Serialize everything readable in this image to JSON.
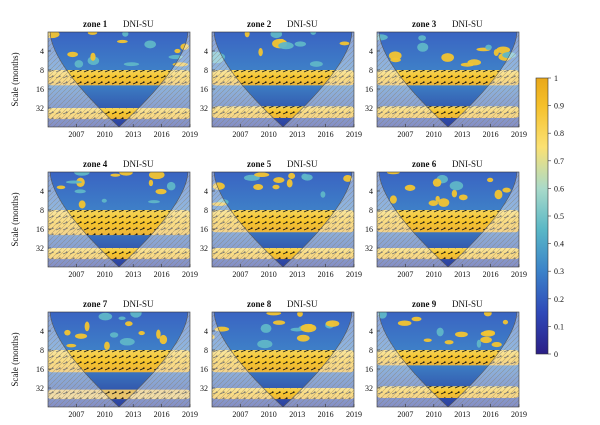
{
  "figure": {
    "ylabel": "Scale (months)",
    "panels": [
      {
        "zone": "zone 1",
        "pair": "DNI-SU"
      },
      {
        "zone": "zone 2",
        "pair": "DNI-SU"
      },
      {
        "zone": "zone 3",
        "pair": "DNI-SU"
      },
      {
        "zone": "zone 4",
        "pair": "DNI-SU"
      },
      {
        "zone": "zone 5",
        "pair": "DNI-SU"
      },
      {
        "zone": "zone 6",
        "pair": "DNI-SU"
      },
      {
        "zone": "zone 7",
        "pair": "DNI-SU"
      },
      {
        "zone": "zone 8",
        "pair": "DNI-SU"
      },
      {
        "zone": "zone 9",
        "pair": "DNI-SU"
      }
    ]
  },
  "chart_data": {
    "type": "heatmap",
    "subtype": "wavelet coherence",
    "x_ticks": [
      "2007",
      "2010",
      "2013",
      "2016",
      "2019"
    ],
    "x_tick_values": [
      2007,
      2010,
      2013,
      2016,
      2019
    ],
    "xlim": [
      2004,
      2019
    ],
    "y_ticks": [
      "4",
      "8",
      "16",
      "32"
    ],
    "y_tick_values": [
      4,
      8,
      16,
      32
    ],
    "ylim": [
      2,
      64
    ],
    "y_scale": "log2",
    "colorbar": {
      "ticks": [
        "0",
        "0.1",
        "0.2",
        "0.3",
        "0.4",
        "0.5",
        "0.6",
        "0.7",
        "0.8",
        "0.9",
        "1"
      ],
      "values": [
        0,
        0.1,
        0.2,
        0.3,
        0.4,
        0.5,
        0.6,
        0.7,
        0.8,
        0.9,
        1
      ],
      "range": [
        0,
        1
      ],
      "colors": [
        "#2b1f86",
        "#2f49b8",
        "#3b82c9",
        "#59b7c6",
        "#a9dac9",
        "#fbe173",
        "#f5c02b",
        "#e9a81a"
      ]
    },
    "panels": [
      {
        "name": "zone 1",
        "bands": [
          {
            "scale": [
              8,
              14
            ],
            "coherence": 0.9
          },
          {
            "scale": [
              32,
              48
            ],
            "coherence": 0.85
          }
        ]
      },
      {
        "name": "zone 2",
        "bands": [
          {
            "scale": [
              8,
              14
            ],
            "coherence": 0.9
          },
          {
            "scale": [
              30,
              46
            ],
            "coherence": 0.85
          }
        ]
      },
      {
        "name": "zone 3",
        "bands": [
          {
            "scale": [
              8,
              14
            ],
            "coherence": 0.9
          },
          {
            "scale": [
              30,
              46
            ],
            "coherence": 0.85
          }
        ]
      },
      {
        "name": "zone 4",
        "bands": [
          {
            "scale": [
              8,
              20
            ],
            "coherence": 0.9
          },
          {
            "scale": [
              32,
              48
            ],
            "coherence": 0.85
          }
        ]
      },
      {
        "name": "zone 5",
        "bands": [
          {
            "scale": [
              8,
              18
            ],
            "coherence": 0.9
          },
          {
            "scale": [
              32,
              48
            ],
            "coherence": 0.85
          }
        ]
      },
      {
        "name": "zone 6",
        "bands": [
          {
            "scale": [
              8,
              18
            ],
            "coherence": 0.9
          },
          {
            "scale": [
              32,
              48
            ],
            "coherence": 0.85
          }
        ]
      },
      {
        "name": "zone 7",
        "bands": [
          {
            "scale": [
              8,
              18
            ],
            "coherence": 0.9
          },
          {
            "scale": [
              34,
              48
            ],
            "coherence": 0.7
          }
        ]
      },
      {
        "name": "zone 8",
        "bands": [
          {
            "scale": [
              8,
              18
            ],
            "coherence": 0.9
          },
          {
            "scale": [
              32,
              48
            ],
            "coherence": 0.85
          }
        ]
      },
      {
        "name": "zone 9",
        "bands": [
          {
            "scale": [
              8,
              14
            ],
            "coherence": 0.9
          },
          {
            "scale": [
              30,
              46
            ],
            "coherence": 0.85
          }
        ]
      }
    ]
  }
}
